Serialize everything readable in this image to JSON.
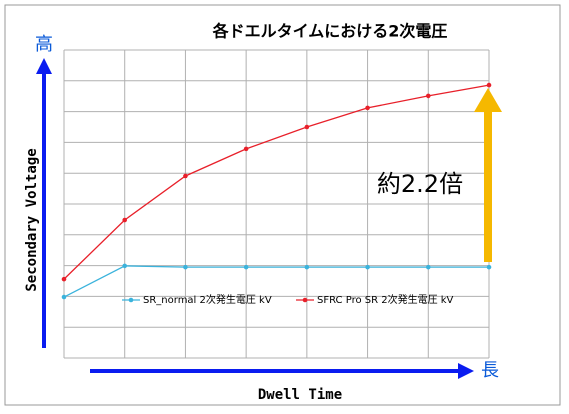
{
  "chart_data": {
    "type": "line",
    "title": "各ドエルタイムにおける2次電圧",
    "y_label": "Secondary Voltage",
    "x_label": "Dwell Time",
    "y_high_label": "高",
    "x_long_label": "長",
    "annotation": "約2.2倍",
    "categories": [
      null,
      null,
      null,
      null,
      null,
      null,
      null,
      null
    ],
    "series": [
      {
        "name": "SR_normal 2次発生電圧 kV",
        "color": "#3bb3dc",
        "values": [
          1.98,
          2.99,
          2.95,
          2.95,
          2.95,
          2.95,
          2.95,
          2.95
        ]
      },
      {
        "name": "SFRC Pro SR 2次発生電圧 kV",
        "color": "#e8202a",
        "values": [
          2.56,
          4.48,
          5.91,
          6.79,
          7.5,
          8.12,
          8.51,
          8.86
        ]
      }
    ],
    "ylim": [
      0,
      10
    ],
    "yticks": [
      0,
      1,
      2,
      3,
      4,
      5,
      6,
      7,
      8,
      9,
      10
    ],
    "grid": true
  }
}
